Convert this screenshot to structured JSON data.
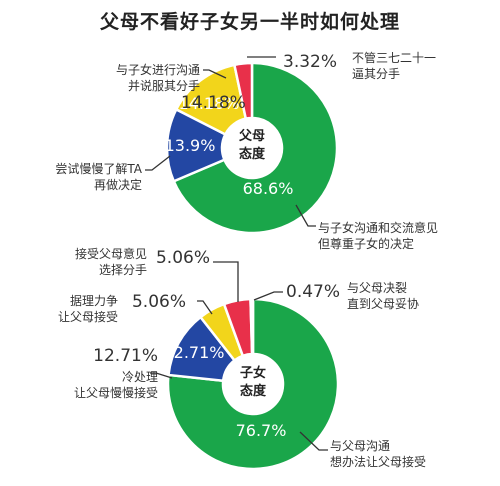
{
  "title": "父母不看好子女另一半时如何处理",
  "colors": {
    "green": "#1aa64a",
    "blue": "#2347a3",
    "yellow": "#f2d51b",
    "red": "#e8304a",
    "gray": "#d8d8d8"
  },
  "chart_data": [
    {
      "type": "pie",
      "variant": "donut",
      "center_label": [
        "父母",
        "态度"
      ],
      "slices": [
        {
          "label": "与子女沟通和交流意见但尊重子女的决定",
          "label_lines": [
            "与子女沟通和交流意见",
            "但尊重子女的决定"
          ],
          "value": 68.6,
          "value_text": "68.6%",
          "color": "green"
        },
        {
          "label": "尝试慢慢了解TA再做决定",
          "label_lines": [
            "尝试慢慢了解TA",
            "再做决定"
          ],
          "value": 13.9,
          "value_text": "13.9%",
          "color": "blue"
        },
        {
          "label": "与子女进行沟通并说服其分手",
          "label_lines": [
            "与子女进行沟通",
            "并说服其分手"
          ],
          "value": 14.18,
          "value_text": "14.18%",
          "color": "yellow"
        },
        {
          "label": "不管三七二十一逼其分手",
          "label_lines": [
            "不管三七二十一",
            "逼其分手"
          ],
          "value": 3.32,
          "value_text": "3.32%",
          "color": "red"
        }
      ]
    },
    {
      "type": "pie",
      "variant": "donut",
      "center_label": [
        "子女",
        "态度"
      ],
      "slices": [
        {
          "label": "与父母沟通想办法让父母接受",
          "label_lines": [
            "与父母沟通",
            "想办法让父母接受"
          ],
          "value": 76.7,
          "value_text": "76.7%",
          "color": "green"
        },
        {
          "label": "冷处理让父母慢慢接受",
          "label_lines": [
            "冷处理",
            "让父母慢慢接受"
          ],
          "value": 12.71,
          "value_text": "12.71%",
          "color": "blue"
        },
        {
          "label": "据理力争让父母接受",
          "label_lines": [
            "据理力争",
            "让父母接受"
          ],
          "value": 5.06,
          "value_text": "5.06%",
          "color": "yellow"
        },
        {
          "label": "接受父母意见选择分手",
          "label_lines": [
            "接受父母意见",
            "选择分手"
          ],
          "value": 5.06,
          "value_text": "5.06%",
          "color": "red"
        },
        {
          "label": "与父母决裂直到父母妥协",
          "label_lines": [
            "与父母决裂",
            "直到父母妥协"
          ],
          "value": 0.47,
          "value_text": "0.47%",
          "color": "gray"
        }
      ]
    }
  ]
}
